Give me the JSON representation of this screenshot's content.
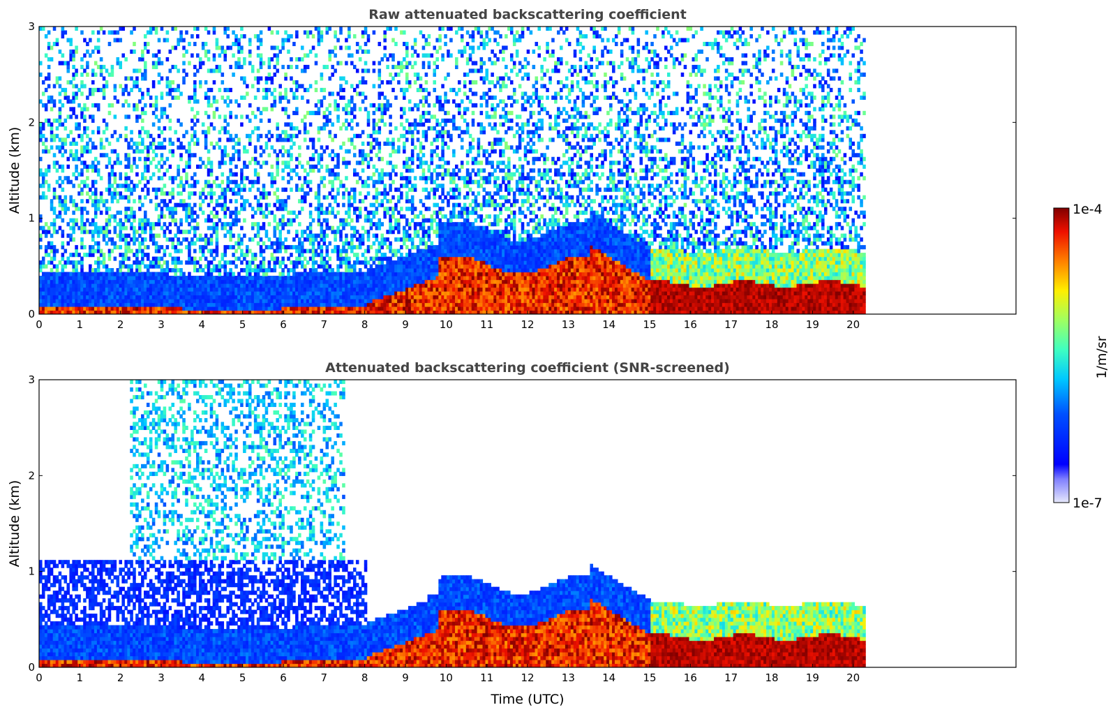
{
  "chart_data": [
    {
      "type": "heatmap",
      "title": "Raw attenuated backscattering coefficient",
      "xlabel": "",
      "ylabel": "Altitude (km)",
      "xlim": [
        0,
        24
      ],
      "ylim": [
        0,
        3
      ],
      "x_ticks": [
        0,
        1,
        2,
        3,
        4,
        5,
        6,
        7,
        8,
        9,
        10,
        11,
        12,
        13,
        14,
        15,
        16,
        17,
        18,
        19,
        20
      ],
      "y_ticks": [
        0,
        1,
        2,
        3
      ],
      "data_end_time": 20.3,
      "variant": "raw"
    },
    {
      "type": "heatmap",
      "title": "Attenuated backscattering coefficient (SNR-screened)",
      "xlabel": "Time (UTC)",
      "ylabel": "Altitude (km)",
      "xlim": [
        0,
        24
      ],
      "ylim": [
        0,
        3
      ],
      "x_ticks": [
        0,
        1,
        2,
        3,
        4,
        5,
        6,
        7,
        8,
        9,
        10,
        11,
        12,
        13,
        14,
        15,
        16,
        17,
        18,
        19,
        20
      ],
      "y_ticks": [
        0,
        1,
        2,
        3
      ],
      "data_end_time": 20.3,
      "variant": "screened"
    }
  ],
  "colorbar": {
    "label": "1/m/sr",
    "max_label": "1e-4",
    "min_label": "1e-7",
    "colormap": "jet",
    "scale": "log"
  }
}
